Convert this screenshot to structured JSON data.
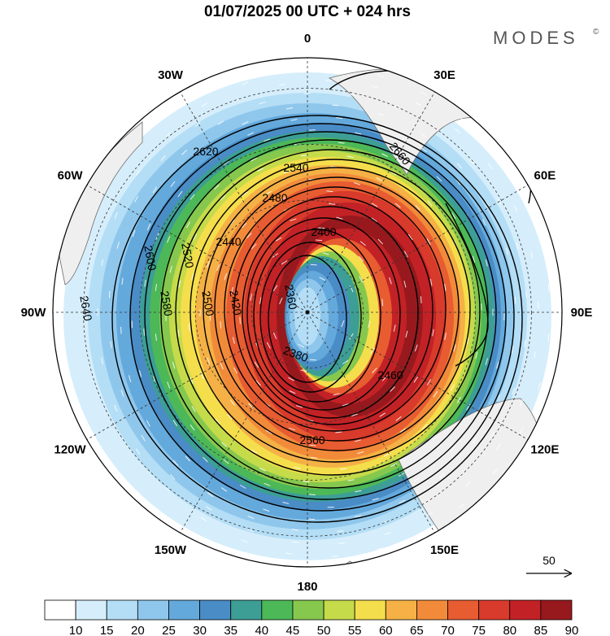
{
  "title": "01/07/2025  00 UTC  + 024 hrs",
  "brand": "MODES",
  "brand_mark": "©",
  "center_glyph": "•",
  "vector_reference": "50",
  "meridian_labels": [
    "0",
    "30E",
    "60E",
    "90E",
    "120E",
    "150E",
    "180",
    "150W",
    "120W",
    "90W",
    "60W",
    "30W"
  ],
  "contour_labels": [
    "2360",
    "2380",
    "2400",
    "2420",
    "2440",
    "2460",
    "2480",
    "2500",
    "2520",
    "2540",
    "2560",
    "2580",
    "2600",
    "2620",
    "2640",
    "2660"
  ],
  "colorbar": {
    "ticks": [
      "10",
      "15",
      "20",
      "25",
      "30",
      "35",
      "40",
      "45",
      "50",
      "55",
      "60",
      "65",
      "70",
      "75",
      "80",
      "85",
      "90"
    ],
    "colors": [
      "#ffffff",
      "#d6eefb",
      "#b4def6",
      "#8fc7ec",
      "#64a9dc",
      "#4a8cc6",
      "#3d9e96",
      "#4cb857",
      "#86c84e",
      "#c6db4a",
      "#f5de4b",
      "#f5b145",
      "#f18b3a",
      "#e85c31",
      "#d83a2b",
      "#c22226",
      "#98191d"
    ]
  },
  "colors": {
    "land": "#efefef",
    "coast": "#6b6b6b",
    "contour": "#000000",
    "vectors": "#ffffff",
    "grid": "#333333"
  }
}
